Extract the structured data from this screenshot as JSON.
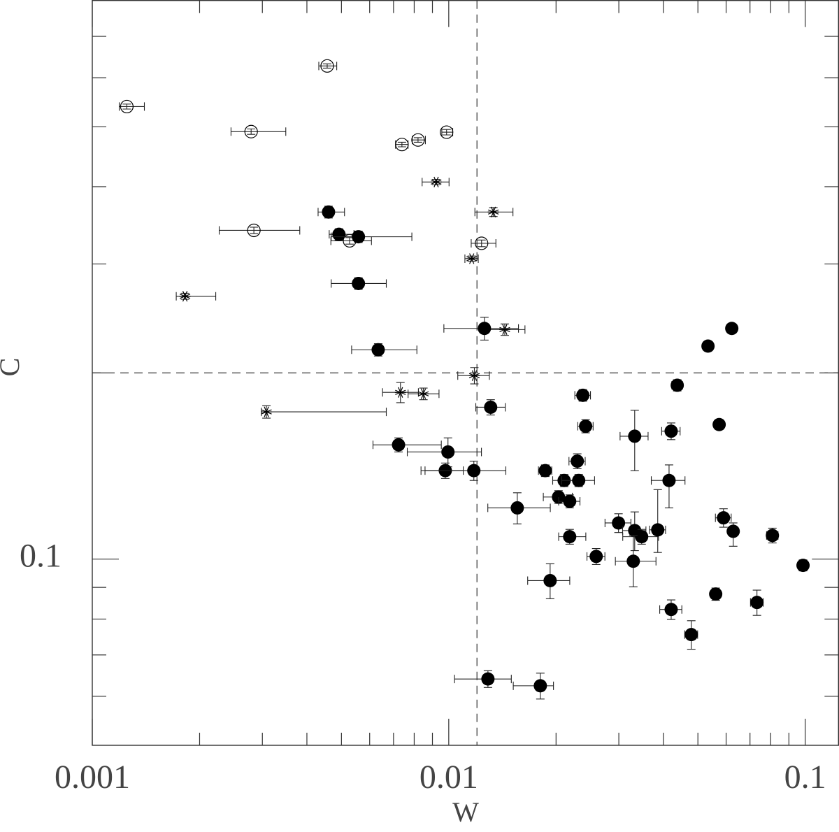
{
  "chart_data": {
    "type": "scatter",
    "xlabel": "W",
    "ylabel": "C",
    "xscale": "log",
    "yscale": "log",
    "xlim": [
      0.001,
      0.124
    ],
    "ylim": [
      0.05,
      0.8
    ],
    "xticks": [
      0.001,
      0.01,
      0.1
    ],
    "yticks": [
      0.1
    ],
    "xminor_ticks": [
      0.002,
      0.003,
      0.004,
      0.005,
      0.006,
      0.007,
      0.008,
      0.009,
      0.02,
      0.03,
      0.04,
      0.05,
      0.06,
      0.07,
      0.08,
      0.09
    ],
    "yminor_ticks": [
      0.06,
      0.07,
      0.08,
      0.09,
      0.2,
      0.3,
      0.4,
      0.5,
      0.6,
      0.7
    ],
    "reference_lines": {
      "x": [
        0.012
      ],
      "y": [
        0.2
      ]
    },
    "series": [
      {
        "marker": "open-circle",
        "color": "#000000",
        "x": [
          0.00456,
          0.00125,
          0.00279,
          0.00739,
          0.0082,
          0.00986,
          0.00284,
          0.00527,
          0.01236
        ],
        "y": [
          0.627,
          0.539,
          0.491,
          0.468,
          0.476,
          0.49,
          0.34,
          0.327,
          0.324
        ],
        "xerr": [
          [
            0.00024,
            0.00029
          ],
          [
            6e-05,
            0.00015
          ],
          [
            0.00034,
            0.0007
          ],
          [
            0.0003,
            0.0003
          ],
          [
            0.0003,
            0.0004
          ],
          [
            0.0003,
            0.0004
          ],
          [
            0.00057,
            0.00098
          ],
          [
            0.0006,
            0.0008
          ],
          [
            0.0008,
            0.0012
          ]
        ],
        "yerr": [
          [
            0.005,
            0.005
          ],
          [
            0.005,
            0.005
          ],
          [
            0.005,
            0.005
          ],
          [
            0.004,
            0.004
          ],
          [
            0.004,
            0.004
          ],
          [
            0.005,
            0.005
          ],
          [
            0.004,
            0.004
          ],
          [
            0.004,
            0.004
          ],
          [
            0.004,
            0.004
          ]
        ]
      },
      {
        "marker": "asterisk",
        "color": "#000000",
        "x": [
          0.00922,
          0.01334,
          0.0116,
          0.00182,
          0.01436,
          0.0118,
          0.00732,
          0.00849,
          0.00308
        ],
        "y": [
          0.407,
          0.364,
          0.306,
          0.266,
          0.235,
          0.198,
          0.186,
          0.185,
          0.173
        ],
        "xerr": [
          [
            0.0008,
            0.0008
          ],
          [
            0.0015,
            0.0018
          ],
          [
            0.0005,
            0.0005
          ],
          [
            0.0001,
            0.0004
          ],
          [
            0.0015,
            0.002
          ],
          [
            0.0012,
            0.0012
          ],
          [
            0.0008,
            0.0009
          ],
          [
            0.0008,
            0.0009
          ],
          [
            0.0001,
            0.0036
          ]
        ],
        "yerr": [
          [
            0.004,
            0.004
          ],
          [
            0.006,
            0.006
          ],
          [
            0.003,
            0.003
          ],
          [
            0.003,
            0.003
          ],
          [
            0.005,
            0.005
          ],
          [
            0.006,
            0.006
          ],
          [
            0.007,
            0.007
          ],
          [
            0.004,
            0.004
          ],
          [
            0.004,
            0.004
          ]
        ]
      },
      {
        "marker": "filled-circle",
        "color": "#000000",
        "x": [
          0.0046,
          0.00492,
          0.00558,
          0.00558,
          0.00634,
          0.01259,
          0.01311,
          0.00723,
          0.00995,
          0.00978,
          0.01176,
          0.01557,
          0.01865,
          0.02107,
          0.02294,
          0.02315,
          0.02032,
          0.02184,
          0.02378,
          0.02421,
          0.03324,
          0.04207,
          0.04375,
          0.05337,
          0.06223,
          0.05736,
          0.0415,
          0.02994,
          0.03324,
          0.03477,
          0.03857,
          0.05899,
          0.06281,
          0.08091,
          0.0986,
          0.02184,
          0.02592,
          0.03294,
          0.01925,
          0.04207,
          0.04791,
          0.05609,
          0.07322,
          0.01288,
          0.01807
        ],
        "y": [
          0.364,
          0.335,
          0.332,
          0.279,
          0.218,
          0.236,
          0.176,
          0.153,
          0.149,
          0.139,
          0.139,
          0.121,
          0.139,
          0.134,
          0.144,
          0.134,
          0.126,
          0.124,
          0.184,
          0.164,
          0.158,
          0.161,
          0.191,
          0.221,
          0.236,
          0.165,
          0.134,
          0.1144,
          0.1112,
          0.1087,
          0.1115,
          0.1166,
          0.1109,
          0.1092,
          0.0977,
          0.1087,
          0.101,
          0.0992,
          0.0923,
          0.0829,
          0.0755,
          0.0878,
          0.0851,
          0.064,
          0.0624
        ],
        "xerr": [
          [
            0.0003,
            0.0005
          ],
          [
            0.0003,
            0.0005
          ],
          [
            0.0009,
            0.0023
          ],
          [
            0.0009,
            0.0011
          ],
          [
            0.001,
            0.0018
          ],
          [
            0.0029,
            0.0031
          ],
          [
            0.0012,
            0.0013
          ],
          [
            0.0011,
            0.0023
          ],
          [
            0.0023,
            0.0024
          ],
          [
            0.0012,
            0.0012
          ],
          [
            0.0034,
            0.0027
          ],
          [
            0.0027,
            0.0037
          ],
          [
            0.0008,
            0.0008
          ],
          [
            0.0015,
            0.0015
          ],
          [
            0.0012,
            0.0012
          ],
          [
            0.0024,
            0.0025
          ],
          [
            0.0019,
            0.0019
          ],
          [
            0.0015,
            0.0015
          ],
          [
            0.0012,
            0.0012
          ],
          [
            0.0012,
            0.0012
          ],
          [
            0.003,
            0.003
          ],
          [
            0.0025,
            0.0025
          ],
          [
            0.0015,
            0.0015
          ],
          [
            0.001,
            0.001
          ],
          [
            0.001,
            0.001
          ],
          [
            0.001,
            0.001
          ],
          [
            0.0045,
            0.0045
          ],
          [
            0.0025,
            0.0025
          ],
          [
            0.0025,
            0.0025
          ],
          [
            0.004,
            0.004
          ],
          [
            0.002,
            0.002
          ],
          [
            0.003,
            0.003
          ],
          [
            0.002,
            0.002
          ],
          [
            0.003,
            0.003
          ],
          [
            0.001,
            0.001
          ],
          [
            0.0015,
            0.0024
          ],
          [
            0.0015,
            0.0015
          ],
          [
            0.0036,
            0.0052
          ],
          [
            0.0026,
            0.0026
          ],
          [
            0.003,
            0.003
          ],
          [
            0.002,
            0.002
          ],
          [
            0.0015,
            0.0015
          ],
          [
            0.003,
            0.003
          ],
          [
            0.0025,
            0.0021
          ],
          [
            0.0029,
            0.0016
          ]
        ],
        "yerr": [
          [
            0.008,
            0.008
          ],
          [
            0.007,
            0.007
          ],
          [
            0.007,
            0.007
          ],
          [
            0.006,
            0.006
          ],
          [
            0.005,
            0.005
          ],
          [
            0.01,
            0.01
          ],
          [
            0.005,
            0.005
          ],
          [
            0.004,
            0.004
          ],
          [
            0.008,
            0.008
          ],
          [
            0.004,
            0.004
          ],
          [
            0.005,
            0.005
          ],
          [
            0.007,
            0.007
          ],
          [
            0.003,
            0.003
          ],
          [
            0.003,
            0.003
          ],
          [
            0.004,
            0.004
          ],
          [
            0.003,
            0.003
          ],
          [
            0.003,
            0.003
          ],
          [
            0.003,
            0.003
          ],
          [
            0.004,
            0.004
          ],
          [
            0.004,
            0.004
          ],
          [
            0.019,
            0.016
          ],
          [
            0.005,
            0.005
          ],
          [
            0.004,
            0.004
          ],
          [
            0.003,
            0.003
          ],
          [
            0.003,
            0.003
          ],
          [
            0.003,
            0.003
          ],
          [
            0.013,
            0.008
          ],
          [
            0.004,
            0.004
          ],
          [
            0.008,
            0.008
          ],
          [
            0.003,
            0.003
          ],
          [
            0.009,
            0.018
          ],
          [
            0.004,
            0.004
          ],
          [
            0.006,
            0.0035
          ],
          [
            0.003,
            0.003
          ],
          [
            0.002,
            0.002
          ],
          [
            0.003,
            0.003
          ],
          [
            0.003,
            0.003
          ],
          [
            0.009,
            0.01
          ],
          [
            0.006,
            0.006
          ],
          [
            0.003,
            0.003
          ],
          [
            0.004,
            0.004
          ],
          [
            0.002,
            0.002
          ],
          [
            0.004,
            0.004
          ],
          [
            0.002,
            0.002
          ],
          [
            0.003,
            0.003
          ]
        ]
      }
    ]
  }
}
